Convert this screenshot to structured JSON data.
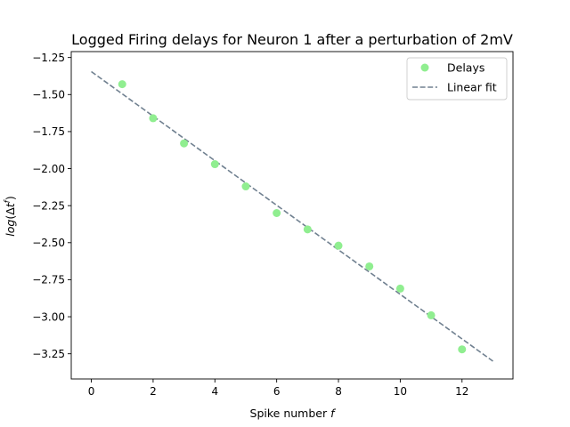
{
  "chart_data": {
    "type": "scatter",
    "title": "Logged Firing delays for Neuron 1 after a perturbation of 2mV",
    "xlabel": "Spike number f",
    "ylabel": "log(Δt^f)",
    "xlim": [
      -0.65,
      13.65
    ],
    "ylim": [
      -3.42,
      -1.21
    ],
    "xticks": [
      0,
      2,
      4,
      6,
      8,
      10,
      12
    ],
    "yticks": [
      -1.25,
      -1.5,
      -1.75,
      -2.0,
      -2.25,
      -2.5,
      -2.75,
      -3.0,
      -3.25
    ],
    "xtick_labels": [
      "0",
      "2",
      "4",
      "6",
      "8",
      "10",
      "12"
    ],
    "ytick_labels": [
      "−1.25",
      "−1.50",
      "−1.75",
      "−2.00",
      "−2.25",
      "−2.50",
      "−2.75",
      "−3.00",
      "−3.25"
    ],
    "grid": false,
    "legend_position": "top-right",
    "series": [
      {
        "name": "Delays",
        "kind": "scatter",
        "color": "#90ee90",
        "x": [
          1,
          2,
          3,
          4,
          5,
          6,
          7,
          8,
          9,
          10,
          11,
          12
        ],
        "y": [
          -1.43,
          -1.66,
          -1.83,
          -1.97,
          -2.12,
          -2.3,
          -2.41,
          -2.52,
          -2.66,
          -2.81,
          -2.99,
          -3.22
        ]
      },
      {
        "name": "Linear fit",
        "kind": "line",
        "style": "dashed",
        "color": "#708090",
        "x": [
          0,
          13
        ],
        "y": [
          -1.345,
          -3.3
        ]
      }
    ]
  }
}
